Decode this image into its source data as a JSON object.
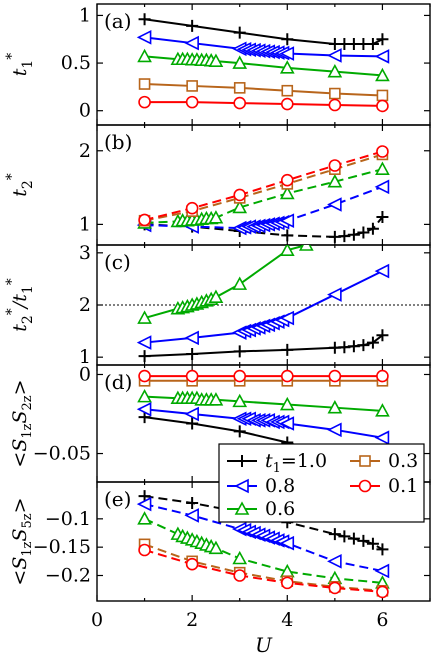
{
  "chart_data": {
    "type": "line",
    "xlabel": "U",
    "xlim": [
      0,
      7
    ],
    "xticks": [
      "0",
      "2",
      "4",
      "6"
    ],
    "legend": {
      "placement": "inside panel (d)-(e), right",
      "title_var": "t",
      "title_sub": "1",
      "entries": [
        "=1.0",
        "0.3",
        "0.8",
        "0.1",
        "0.6"
      ]
    },
    "colors": {
      "t1_1.0": "#000000",
      "t1_0.8": "#0000ff",
      "t1_0.6": "#00aa00",
      "t1_0.3": "#b8651b",
      "t1_0.1": "#ff0000"
    },
    "panels": [
      {
        "tag": "(a)",
        "ylabel_main": "t",
        "ylabel_sub": "1",
        "ylabel_sup": "*",
        "ylim": [
          -0.15,
          1.12
        ],
        "yticks": [
          "0",
          "0.5",
          "1"
        ],
        "linestyle": "solid",
        "series": [
          {
            "color": "#000000",
            "marker": "plus",
            "x": [
              1,
              2,
              3,
              4,
              5,
              5.2,
              5.4,
              5.6,
              5.8,
              6
            ],
            "y": [
              0.96,
              0.89,
              0.82,
              0.75,
              0.7,
              0.7,
              0.7,
              0.7,
              0.7,
              0.75
            ]
          },
          {
            "color": "#0000ff",
            "marker": "tri_left",
            "x": [
              1,
              2,
              3,
              3.1,
              3.2,
              3.3,
              3.4,
              3.5,
              3.6,
              3.7,
              3.8,
              3.9,
              4,
              5,
              6
            ],
            "y": [
              0.77,
              0.71,
              0.65,
              0.645,
              0.64,
              0.635,
              0.63,
              0.625,
              0.62,
              0.615,
              0.61,
              0.605,
              0.6,
              0.58,
              0.57
            ]
          },
          {
            "color": "#00aa00",
            "marker": "tri_up",
            "x": [
              1,
              1.7,
              1.8,
              1.9,
              2,
              2.1,
              2.2,
              2.3,
              2.4,
              2.5,
              3,
              4,
              5,
              6
            ],
            "y": [
              0.57,
              0.54,
              0.54,
              0.54,
              0.535,
              0.535,
              0.53,
              0.53,
              0.525,
              0.52,
              0.5,
              0.45,
              0.41,
              0.37
            ]
          },
          {
            "color": "#b8651b",
            "marker": "square",
            "x": [
              1,
              2,
              3,
              4,
              5,
              6
            ],
            "y": [
              0.28,
              0.26,
              0.24,
              0.21,
              0.18,
              0.16
            ]
          },
          {
            "color": "#ff0000",
            "marker": "circle",
            "x": [
              1,
              2,
              3,
              4,
              5,
              6
            ],
            "y": [
              0.09,
              0.09,
              0.08,
              0.07,
              0.06,
              0.05
            ]
          }
        ]
      },
      {
        "tag": "(b)",
        "ylabel_main": "t",
        "ylabel_sub": "2",
        "ylabel_sup": "*",
        "ylim": [
          0.72,
          2.35
        ],
        "yticks": [
          "1",
          "2"
        ],
        "linestyle": "dashed",
        "series": [
          {
            "color": "#000000",
            "marker": "plus",
            "x": [
              1,
              2,
              3,
              4,
              5,
              5.2,
              5.4,
              5.6,
              5.8,
              6
            ],
            "y": [
              1.0,
              0.97,
              0.91,
              0.85,
              0.83,
              0.84,
              0.86,
              0.89,
              0.94,
              1.1
            ]
          },
          {
            "color": "#0000ff",
            "marker": "tri_left",
            "x": [
              1,
              2,
              3,
              3.1,
              3.2,
              3.3,
              3.4,
              3.5,
              3.6,
              3.7,
              3.8,
              3.9,
              4,
              5,
              6
            ],
            "y": [
              0.99,
              0.97,
              0.95,
              0.96,
              0.97,
              0.97,
              0.98,
              0.99,
              1.0,
              1.01,
              1.02,
              1.03,
              1.05,
              1.27,
              1.51
            ]
          },
          {
            "color": "#00aa00",
            "marker": "tri_up",
            "x": [
              1,
              1.7,
              1.8,
              1.9,
              2,
              2.1,
              2.2,
              2.3,
              2.4,
              2.5,
              3,
              4,
              5,
              6
            ],
            "y": [
              1.02,
              1.04,
              1.05,
              1.05,
              1.06,
              1.06,
              1.07,
              1.08,
              1.08,
              1.09,
              1.23,
              1.42,
              1.58,
              1.75
            ]
          },
          {
            "color": "#b8651b",
            "marker": "square",
            "x": [
              1,
              2,
              3,
              4,
              5,
              6
            ],
            "y": [
              1.05,
              1.18,
              1.36,
              1.55,
              1.75,
              1.95
            ]
          },
          {
            "color": "#ff0000",
            "marker": "circle",
            "x": [
              1,
              2,
              3,
              4,
              5,
              6
            ],
            "y": [
              1.06,
              1.22,
              1.4,
              1.6,
              1.8,
              1.99
            ]
          }
        ]
      },
      {
        "tag": "(c)",
        "ylabel_main": "t",
        "ylabel_sub": "2",
        "ylabel_sup": "*",
        "ylabel_tail_main": "/t",
        "ylabel_tail_sub": "1",
        "ylabel_tail_sup": "*",
        "ylim": [
          0.85,
          3.15
        ],
        "yticks": [
          "1",
          "2",
          "3"
        ],
        "refline": 2,
        "linestyle": "solid",
        "series": [
          {
            "color": "#000000",
            "marker": "plus",
            "x": [
              1,
              2,
              3,
              4,
              5,
              5.2,
              5.4,
              5.6,
              5.8,
              6
            ],
            "y": [
              1.02,
              1.06,
              1.11,
              1.14,
              1.18,
              1.19,
              1.21,
              1.23,
              1.28,
              1.42
            ]
          },
          {
            "color": "#0000ff",
            "marker": "tri_left",
            "x": [
              1,
              2,
              3,
              3.1,
              3.2,
              3.3,
              3.4,
              3.5,
              3.6,
              3.7,
              3.8,
              3.9,
              4,
              5,
              6
            ],
            "y": [
              1.28,
              1.37,
              1.47,
              1.5,
              1.52,
              1.55,
              1.57,
              1.6,
              1.62,
              1.65,
              1.68,
              1.71,
              1.75,
              2.2,
              2.65
            ]
          },
          {
            "color": "#00aa00",
            "marker": "tri_up",
            "x": [
              1,
              1.7,
              1.8,
              1.9,
              2,
              2.1,
              2.2,
              2.3,
              2.4,
              2.5,
              3,
              4,
              4.4
            ],
            "y": [
              1.75,
              1.93,
              1.95,
              1.97,
              2.0,
              2.02,
              2.05,
              2.08,
              2.11,
              2.15,
              2.4,
              3.05,
              3.15
            ]
          }
        ]
      },
      {
        "tag": "(d)",
        "ylabel_text": "<S",
        "ylabel_sub1": "1z",
        "ylabel_mid": "S",
        "ylabel_sub2": "2z",
        "ylabel_end": ">",
        "ylim": [
          -0.068,
          0.006
        ],
        "yticks": [
          "0",
          "-0.05"
        ],
        "linestyle": "solid",
        "series": [
          {
            "color": "#000000",
            "marker": "plus",
            "x": [
              1,
              2,
              3,
              4,
              5,
              5.2,
              5.4,
              5.6,
              5.8,
              6
            ],
            "y": [
              -0.027,
              -0.031,
              -0.036,
              -0.043,
              -0.052,
              -0.053,
              -0.054,
              -0.055,
              -0.057,
              -0.06
            ]
          },
          {
            "color": "#0000ff",
            "marker": "tri_left",
            "x": [
              1,
              2,
              3,
              3.1,
              3.2,
              3.3,
              3.4,
              3.5,
              3.6,
              3.7,
              3.8,
              3.9,
              4,
              5,
              6
            ],
            "y": [
              -0.022,
              -0.025,
              -0.028,
              -0.028,
              -0.028,
              -0.029,
              -0.029,
              -0.029,
              -0.029,
              -0.03,
              -0.03,
              -0.03,
              -0.031,
              -0.035,
              -0.04
            ]
          },
          {
            "color": "#00aa00",
            "marker": "tri_up",
            "x": [
              1,
              1.7,
              1.8,
              1.9,
              2,
              2.1,
              2.2,
              2.3,
              2.4,
              2.5,
              3,
              4,
              5,
              6
            ],
            "y": [
              -0.014,
              -0.015,
              -0.015,
              -0.015,
              -0.015,
              -0.015,
              -0.016,
              -0.016,
              -0.016,
              -0.016,
              -0.017,
              -0.019,
              -0.021,
              -0.023
            ]
          },
          {
            "color": "#b8651b",
            "marker": "square",
            "x": [
              1,
              2,
              3,
              4,
              5,
              6
            ],
            "y": [
              -0.004,
              -0.004,
              -0.004,
              -0.004,
              -0.004,
              -0.004
            ]
          },
          {
            "color": "#ff0000",
            "marker": "circle",
            "x": [
              1,
              2,
              3,
              4,
              5,
              6
            ],
            "y": [
              -0.001,
              -0.001,
              -0.001,
              -0.001,
              -0.001,
              -0.001
            ]
          }
        ]
      },
      {
        "tag": "(e)",
        "ylabel_text": "<S",
        "ylabel_sub1": "1z",
        "ylabel_mid": "S",
        "ylabel_sub2": "5z",
        "ylabel_end": ">",
        "ylim": [
          -0.245,
          -0.035
        ],
        "yticks": [
          "-0.1",
          "-0.15",
          "-0.2"
        ],
        "linestyle": "dashed",
        "series": [
          {
            "color": "#000000",
            "marker": "plus",
            "x": [
              1,
              2,
              3,
              4,
              5,
              5.2,
              5.4,
              5.6,
              5.8,
              6
            ],
            "y": [
              -0.06,
              -0.072,
              -0.088,
              -0.106,
              -0.127,
              -0.131,
              -0.135,
              -0.139,
              -0.144,
              -0.154
            ]
          },
          {
            "color": "#0000ff",
            "marker": "tri_left",
            "x": [
              1,
              2,
              3,
              3.1,
              3.2,
              3.3,
              3.4,
              3.5,
              3.6,
              3.7,
              3.8,
              3.9,
              4,
              5,
              6
            ],
            "y": [
              -0.074,
              -0.094,
              -0.118,
              -0.12,
              -0.123,
              -0.125,
              -0.128,
              -0.13,
              -0.133,
              -0.135,
              -0.138,
              -0.14,
              -0.143,
              -0.175,
              -0.192
            ]
          },
          {
            "color": "#00aa00",
            "marker": "tri_up",
            "x": [
              1,
              1.7,
              1.8,
              1.9,
              2,
              2.1,
              2.2,
              2.3,
              2.4,
              2.5,
              3,
              4,
              5,
              6
            ],
            "y": [
              -0.1,
              -0.127,
              -0.131,
              -0.134,
              -0.137,
              -0.14,
              -0.143,
              -0.146,
              -0.149,
              -0.152,
              -0.17,
              -0.193,
              -0.205,
              -0.213
            ]
          },
          {
            "color": "#b8651b",
            "marker": "square",
            "x": [
              1,
              2,
              3,
              4,
              5,
              6
            ],
            "y": [
              -0.145,
              -0.175,
              -0.195,
              -0.21,
              -0.22,
              -0.227
            ]
          },
          {
            "color": "#ff0000",
            "marker": "circle",
            "x": [
              1,
              2,
              3,
              4,
              5,
              6
            ],
            "y": [
              -0.155,
              -0.18,
              -0.2,
              -0.213,
              -0.222,
              -0.229
            ]
          }
        ]
      }
    ]
  }
}
